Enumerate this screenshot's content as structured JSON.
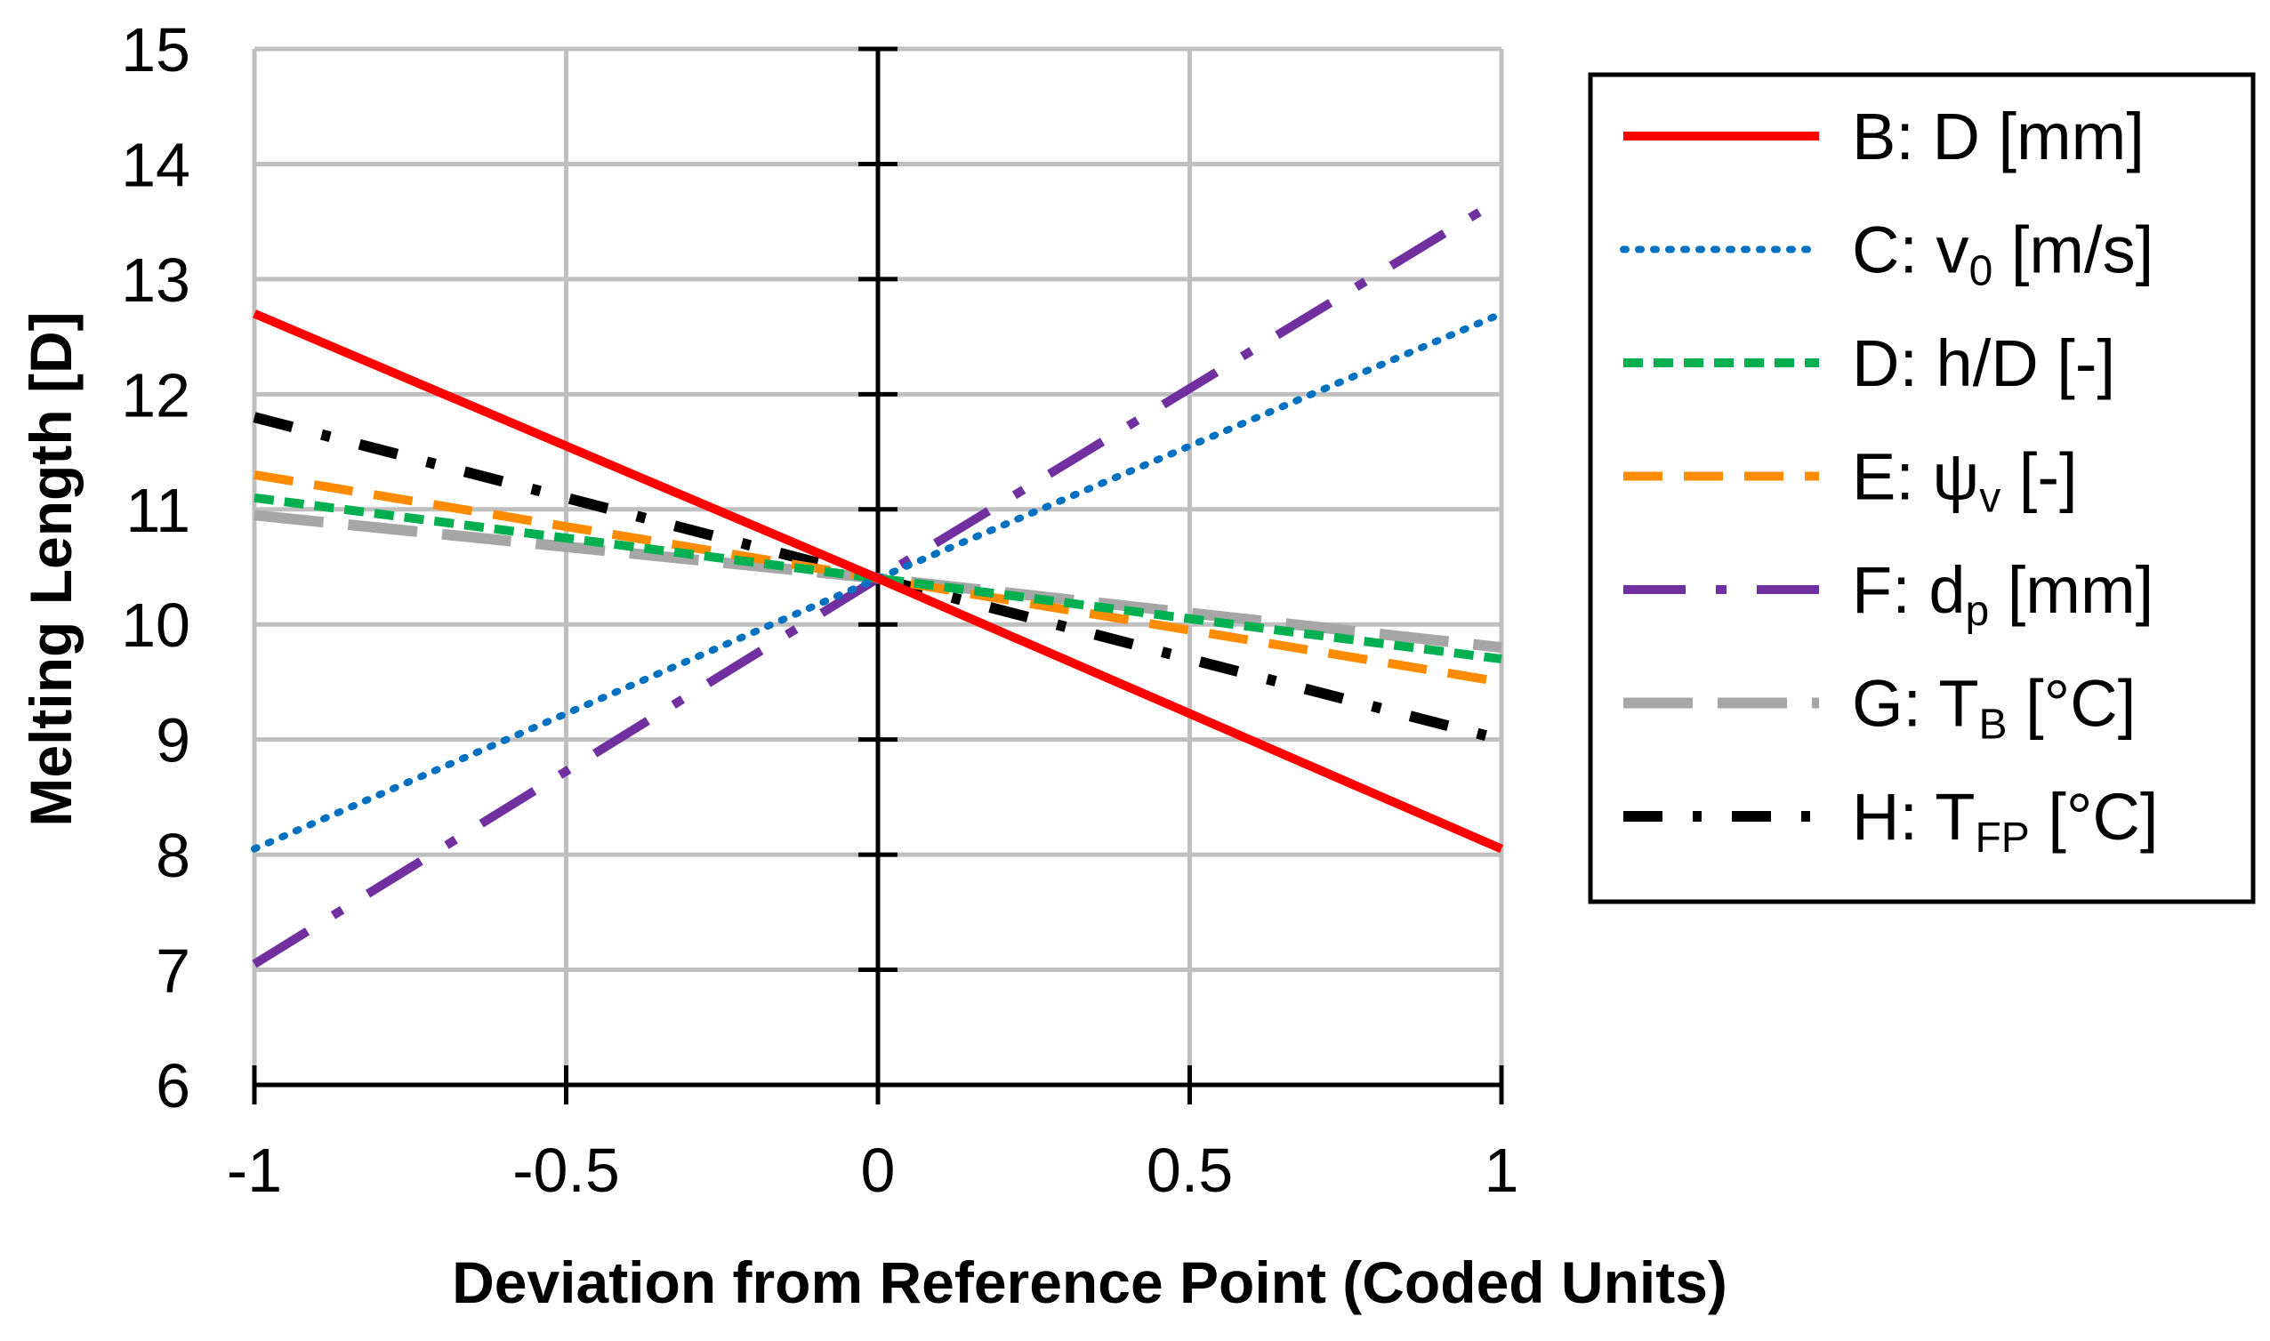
{
  "chart_data": {
    "type": "line",
    "title": "",
    "xlabel": "Deviation from Reference Point (Coded Units)",
    "ylabel": "Melting Length [D]",
    "xlim": [
      -1,
      1
    ],
    "ylim": [
      6,
      15
    ],
    "grid": true,
    "legend_position": "right",
    "x_ticks": [
      -1,
      -0.5,
      0,
      0.5,
      1
    ],
    "x_tick_labels": [
      "-1",
      "-0.5",
      "0",
      "0.5",
      "1"
    ],
    "y_ticks": [
      6,
      7,
      8,
      9,
      10,
      11,
      12,
      13,
      14,
      15
    ],
    "y_tick_labels": [
      "6",
      "7",
      "8",
      "9",
      "10",
      "11",
      "12",
      "13",
      "14",
      "15"
    ],
    "series": [
      {
        "id": "B",
        "label_main": "B:  D [mm]",
        "label_sub": "",
        "label_tail": "",
        "color": "#ff0000",
        "style": "solid",
        "x": [
          -1,
          0,
          1
        ],
        "values": [
          12.7,
          10.4,
          8.05
        ]
      },
      {
        "id": "C",
        "label_main": "C:  v",
        "label_sub": "0",
        "label_tail": " [m/s]",
        "color": "#0070c0",
        "style": "dotted",
        "x": [
          -1,
          0,
          1
        ],
        "values": [
          8.05,
          10.4,
          12.7
        ]
      },
      {
        "id": "D",
        "label_main": "D:  h/D [-]",
        "label_sub": "",
        "label_tail": "",
        "color": "#00b050",
        "style": "short-dash",
        "x": [
          -1,
          0,
          1
        ],
        "values": [
          11.1,
          10.4,
          9.7
        ]
      },
      {
        "id": "E",
        "label_main": "E:  ψ",
        "label_sub": "v",
        "label_tail": " [-]",
        "color": "#ff8c00",
        "style": "dash",
        "x": [
          -1,
          0,
          1
        ],
        "values": [
          11.3,
          10.4,
          9.5
        ]
      },
      {
        "id": "F",
        "label_main": "F:  d",
        "label_sub": "p",
        "label_tail": " [mm]",
        "color": "#7030a0",
        "style": "long-dash-dot",
        "x": [
          -1,
          0,
          1
        ],
        "values": [
          7.05,
          10.4,
          13.7
        ]
      },
      {
        "id": "G",
        "label_main": "G:  T",
        "label_sub": "B",
        "label_tail": " [°C]",
        "color": "#a6a6a6",
        "style": "long-dash",
        "x": [
          -1,
          0,
          1
        ],
        "values": [
          10.95,
          10.4,
          9.8
        ]
      },
      {
        "id": "H",
        "label_main": "H:  T",
        "label_sub": "FP",
        "label_tail": " [°C]",
        "color": "#000000",
        "style": "dash-dot",
        "x": [
          -1,
          0,
          1
        ],
        "values": [
          11.8,
          10.4,
          9.0
        ]
      }
    ]
  }
}
